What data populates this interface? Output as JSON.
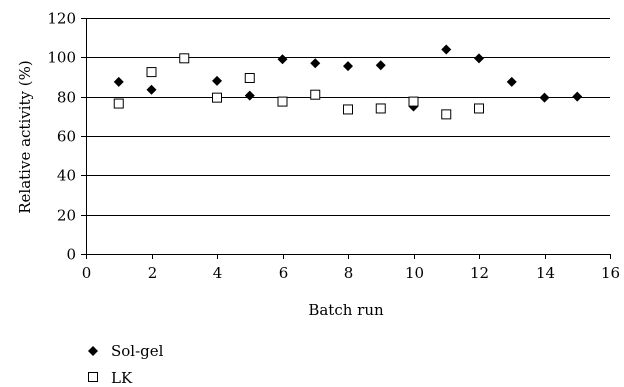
{
  "chart_data": {
    "type": "scatter",
    "xlabel": "Batch run",
    "ylabel": "Relative activity (%)",
    "xlim": [
      0,
      16
    ],
    "ylim": [
      0,
      120
    ],
    "x_ticks": [
      0,
      2,
      4,
      6,
      8,
      10,
      12,
      14,
      16
    ],
    "y_ticks": [
      0,
      20,
      40,
      60,
      80,
      100,
      120
    ],
    "grid": "horizontal",
    "legend_position": "bottom-left",
    "series": [
      {
        "name": "Sol-gel",
        "marker": "diamond",
        "color": "#000000",
        "points": [
          {
            "x": 1,
            "y": 87.5
          },
          {
            "x": 2,
            "y": 83.5
          },
          {
            "x": 4,
            "y": 88
          },
          {
            "x": 5,
            "y": 80.5
          },
          {
            "x": 6,
            "y": 99
          },
          {
            "x": 7,
            "y": 97
          },
          {
            "x": 8,
            "y": 95.5
          },
          {
            "x": 9,
            "y": 96
          },
          {
            "x": 10,
            "y": 75
          },
          {
            "x": 11,
            "y": 104
          },
          {
            "x": 12,
            "y": 99.5
          },
          {
            "x": 13,
            "y": 87.5
          },
          {
            "x": 14,
            "y": 79.5
          },
          {
            "x": 15,
            "y": 80
          }
        ]
      },
      {
        "name": "LK",
        "marker": "square-open",
        "color": "#000000",
        "points": [
          {
            "x": 1,
            "y": 76.5
          },
          {
            "x": 2,
            "y": 92.5
          },
          {
            "x": 3,
            "y": 99.5
          },
          {
            "x": 4,
            "y": 79.5
          },
          {
            "x": 5,
            "y": 89.5
          },
          {
            "x": 6,
            "y": 77.5
          },
          {
            "x": 7,
            "y": 81
          },
          {
            "x": 8,
            "y": 73.5
          },
          {
            "x": 9,
            "y": 74
          },
          {
            "x": 10,
            "y": 77.5
          },
          {
            "x": 11,
            "y": 71
          },
          {
            "x": 12,
            "y": 74
          }
        ]
      }
    ]
  }
}
